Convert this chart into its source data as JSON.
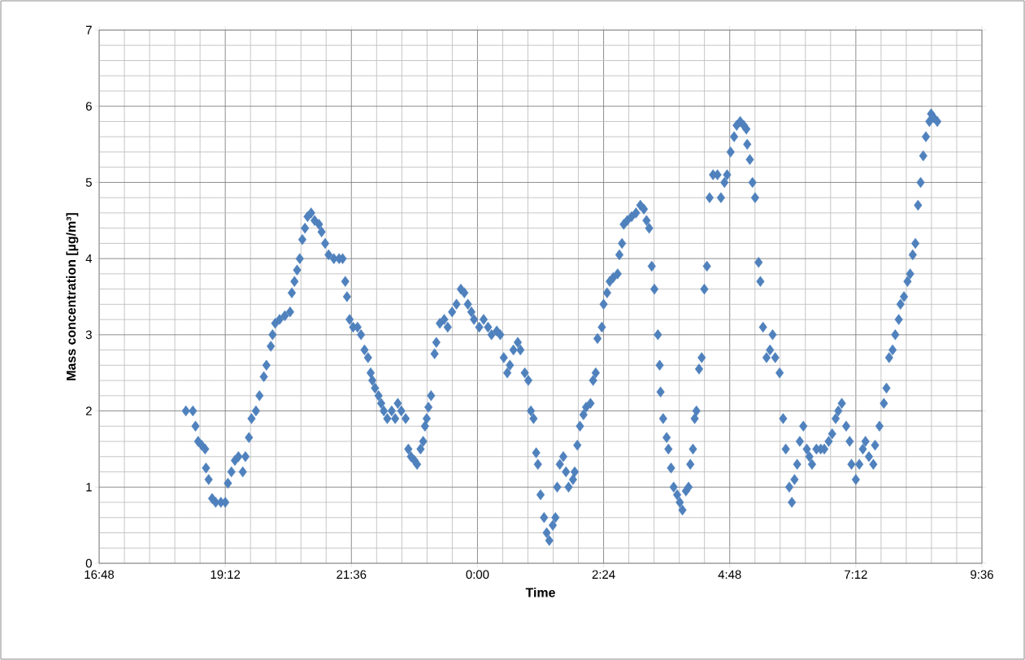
{
  "chart_data": {
    "type": "scatter",
    "xlabel": "Time",
    "ylabel": "Mass concentration [µg/m³]",
    "xlim": [
      "2000-01-01T16:48",
      "2000-01-02T09:36"
    ],
    "ylim": [
      0,
      7
    ],
    "xticks": [
      {
        "value": "2000-01-01T16:48",
        "label": "16:48"
      },
      {
        "value": "2000-01-01T19:12",
        "label": "19:12"
      },
      {
        "value": "2000-01-01T21:36",
        "label": "21:36"
      },
      {
        "value": "2000-01-02T00:00",
        "label": "0:00"
      },
      {
        "value": "2000-01-02T02:24",
        "label": "2:24"
      },
      {
        "value": "2000-01-02T04:48",
        "label": "4:48"
      },
      {
        "value": "2000-01-02T07:12",
        "label": "7:12"
      },
      {
        "value": "2000-01-02T09:36",
        "label": "9:36"
      }
    ],
    "yticks": [
      0,
      1,
      2,
      3,
      4,
      5,
      6,
      7
    ],
    "grid": true,
    "marker": "diamond",
    "x": [
      "2000-01-01T18:27",
      "2000-01-01T18:35",
      "2000-01-01T18:38",
      "2000-01-01T18:41",
      "2000-01-01T18:45",
      "2000-01-01T18:49",
      "2000-01-01T18:50",
      "2000-01-01T18:53",
      "2000-01-01T18:57",
      "2000-01-01T19:01",
      "2000-01-01T19:07",
      "2000-01-01T19:12",
      "2000-01-01T19:15",
      "2000-01-01T19:19",
      "2000-01-01T19:23",
      "2000-01-01T19:27",
      "2000-01-01T19:32",
      "2000-01-01T19:35",
      "2000-01-01T19:39",
      "2000-01-01T19:42",
      "2000-01-01T19:47",
      "2000-01-01T19:51",
      "2000-01-01T19:56",
      "2000-01-01T19:59",
      "2000-01-01T20:04",
      "2000-01-01T20:06",
      "2000-01-01T20:09",
      "2000-01-01T20:14",
      "2000-01-01T20:20",
      "2000-01-01T20:26",
      "2000-01-01T20:28",
      "2000-01-01T20:31",
      "2000-01-01T20:34",
      "2000-01-01T20:37",
      "2000-01-01T20:40",
      "2000-01-01T20:43",
      "2000-01-01T20:46",
      "2000-01-01T20:50",
      "2000-01-01T20:54",
      "2000-01-01T20:59",
      "2000-01-01T21:02",
      "2000-01-01T21:06",
      "2000-01-01T21:10",
      "2000-01-01T21:16",
      "2000-01-01T21:22",
      "2000-01-01T21:26",
      "2000-01-01T21:29",
      "2000-01-01T21:31",
      "2000-01-01T21:34",
      "2000-01-01T21:38",
      "2000-01-01T21:43",
      "2000-01-01T21:47",
      "2000-01-01T21:51",
      "2000-01-01T21:55",
      "2000-01-01T21:58",
      "2000-01-01T22:00",
      "2000-01-01T22:03",
      "2000-01-01T22:07",
      "2000-01-01T22:10",
      "2000-01-01T22:13",
      "2000-01-01T22:17",
      "2000-01-01T22:22",
      "2000-01-01T22:26",
      "2000-01-01T22:29",
      "2000-01-01T22:33",
      "2000-01-01T22:38",
      "2000-01-01T22:41",
      "2000-01-01T22:44",
      "2000-01-01T22:48",
      "2000-01-01T22:51",
      "2000-01-01T22:55",
      "2000-01-01T22:58",
      "2000-01-01T23:00",
      "2000-01-01T23:02",
      "2000-01-01T23:04",
      "2000-01-01T23:07",
      "2000-01-01T23:11",
      "2000-01-01T23:13",
      "2000-01-01T23:17",
      "2000-01-01T23:22",
      "2000-01-01T23:26",
      "2000-01-01T23:31",
      "2000-01-01T23:36",
      "2000-01-01T23:41",
      "2000-01-01T23:45",
      "2000-01-01T23:49",
      "2000-01-01T23:53",
      "2000-01-01T23:56",
      "2000-01-02T00:02",
      "2000-01-02T00:07",
      "2000-01-02T00:12",
      "2000-01-02T00:16",
      "2000-01-02T00:22",
      "2000-01-02T00:26",
      "2000-01-02T00:30",
      "2000-01-02T00:34",
      "2000-01-02T00:37",
      "2000-01-02T00:41",
      "2000-01-02T00:46",
      "2000-01-02T00:49",
      "2000-01-02T00:54",
      "2000-01-02T00:58",
      "2000-01-02T01:01",
      "2000-01-02T01:04",
      "2000-01-02T01:07",
      "2000-01-02T01:09",
      "2000-01-02T01:12",
      "2000-01-02T01:16",
      "2000-01-02T01:19",
      "2000-01-02T01:22",
      "2000-01-02T01:26",
      "2000-01-02T01:29",
      "2000-01-02T01:31",
      "2000-01-02T01:34",
      "2000-01-02T01:38",
      "2000-01-02T01:41",
      "2000-01-02T01:44",
      "2000-01-02T01:49",
      "2000-01-02T01:51",
      "2000-01-02T01:54",
      "2000-01-02T01:57",
      "2000-01-02T02:01",
      "2000-01-02T02:04",
      "2000-01-02T02:09",
      "2000-01-02T02:12",
      "2000-01-02T02:15",
      "2000-01-02T02:17",
      "2000-01-02T02:22",
      "2000-01-02T02:24",
      "2000-01-02T02:28",
      "2000-01-02T02:31",
      "2000-01-02T02:35",
      "2000-01-02T02:40",
      "2000-01-02T02:42",
      "2000-01-02T02:45",
      "2000-01-02T02:47",
      "2000-01-02T02:51",
      "2000-01-02T02:56",
      "2000-01-02T03:01",
      "2000-01-02T03:06",
      "2000-01-02T03:10",
      "2000-01-02T03:13",
      "2000-01-02T03:16",
      "2000-01-02T03:19",
      "2000-01-02T03:22",
      "2000-01-02T03:26",
      "2000-01-02T03:28",
      "2000-01-02T03:29",
      "2000-01-02T03:32",
      "2000-01-02T03:36",
      "2000-01-02T03:38",
      "2000-01-02T03:41",
      "2000-01-02T03:44",
      "2000-01-02T03:48",
      "2000-01-02T03:51",
      "2000-01-02T03:54",
      "2000-01-02T03:58",
      "2000-01-02T04:01",
      "2000-01-02T04:03",
      "2000-01-02T04:06",
      "2000-01-02T04:08",
      "2000-01-02T04:10",
      "2000-01-02T04:13",
      "2000-01-02T04:16",
      "2000-01-02T04:19",
      "2000-01-02T04:22",
      "2000-01-02T04:25",
      "2000-01-02T04:29",
      "2000-01-02T04:34",
      "2000-01-02T04:38",
      "2000-01-02T04:42",
      "2000-01-02T04:45",
      "2000-01-02T04:49",
      "2000-01-02T04:53",
      "2000-01-02T04:56",
      "2000-01-02T05:00",
      "2000-01-02T05:04",
      "2000-01-02T05:07",
      "2000-01-02T05:08",
      "2000-01-02T05:11",
      "2000-01-02T05:14",
      "2000-01-02T05:17",
      "2000-01-02T05:21",
      "2000-01-02T05:23",
      "2000-01-02T05:26",
      "2000-01-02T05:30",
      "2000-01-02T05:34",
      "2000-01-02T05:37",
      "2000-01-02T05:40",
      "2000-01-02T05:45",
      "2000-01-02T05:49",
      "2000-01-02T05:52",
      "2000-01-02T05:56",
      "2000-01-02T05:59",
      "2000-01-02T06:02",
      "2000-01-02T06:05",
      "2000-01-02T06:08",
      "2000-01-02T06:12",
      "2000-01-02T06:16",
      "2000-01-02T06:19",
      "2000-01-02T06:22",
      "2000-01-02T06:27",
      "2000-01-02T06:32",
      "2000-01-02T06:36",
      "2000-01-02T06:41",
      "2000-01-02T06:45",
      "2000-01-02T06:49",
      "2000-01-02T06:52",
      "2000-01-02T06:56",
      "2000-01-02T07:01",
      "2000-01-02T07:05",
      "2000-01-02T07:07",
      "2000-01-02T07:12",
      "2000-01-02T07:16",
      "2000-01-02T07:20",
      "2000-01-02T07:23",
      "2000-01-02T07:27",
      "2000-01-02T07:32",
      "2000-01-02T07:34",
      "2000-01-02T07:39",
      "2000-01-02T07:44",
      "2000-01-02T07:47",
      "2000-01-02T07:50",
      "2000-01-02T07:54",
      "2000-01-02T07:57",
      "2000-01-02T08:01",
      "2000-01-02T08:03",
      "2000-01-02T08:07",
      "2000-01-02T08:11",
      "2000-01-02T08:14",
      "2000-01-02T08:17",
      "2000-01-02T08:20",
      "2000-01-02T08:23",
      "2000-01-02T08:26",
      "2000-01-02T08:29",
      "2000-01-02T08:32",
      "2000-01-02T08:36",
      "2000-01-02T08:38",
      "2000-01-02T08:41",
      "2000-01-02T08:45"
    ],
    "series": [
      {
        "color": "#4f81bd",
        "values": [
          2.0,
          2.0,
          1.8,
          1.6,
          1.55,
          1.5,
          1.25,
          1.1,
          0.85,
          0.8,
          0.8,
          0.8,
          1.05,
          1.2,
          1.35,
          1.4,
          1.2,
          1.4,
          1.65,
          1.9,
          2.0,
          2.2,
          2.45,
          2.6,
          2.85,
          3.0,
          3.15,
          3.2,
          3.25,
          3.3,
          3.55,
          3.7,
          3.85,
          4.0,
          4.25,
          4.4,
          4.55,
          4.6,
          4.5,
          4.45,
          4.35,
          4.2,
          4.05,
          4.0,
          4.0,
          4.0,
          3.7,
          3.5,
          3.2,
          3.1,
          3.1,
          3.0,
          2.8,
          2.7,
          2.5,
          2.4,
          2.3,
          2.2,
          2.1,
          2.0,
          1.9,
          2.0,
          1.9,
          2.1,
          2.0,
          1.9,
          1.5,
          1.4,
          1.35,
          1.3,
          1.5,
          1.6,
          1.8,
          1.9,
          2.05,
          2.2,
          2.75,
          2.9,
          3.15,
          3.2,
          3.1,
          3.3,
          3.4,
          3.6,
          3.55,
          3.4,
          3.3,
          3.2,
          3.1,
          3.2,
          3.1,
          3.0,
          3.05,
          3.0,
          2.7,
          2.5,
          2.6,
          2.8,
          2.9,
          2.8,
          2.5,
          2.4,
          2.0,
          1.9,
          1.45,
          1.3,
          0.9,
          0.6,
          0.4,
          0.3,
          0.5,
          0.6,
          1.0,
          1.3,
          1.4,
          1.2,
          1.0,
          1.1,
          1.2,
          1.55,
          1.8,
          1.95,
          2.05,
          2.1,
          2.4,
          2.5,
          2.95,
          3.1,
          3.4,
          3.55,
          3.7,
          3.75,
          3.8,
          4.05,
          4.2,
          4.45,
          4.5,
          4.55,
          4.6,
          4.7,
          4.65,
          4.5,
          4.4,
          3.9,
          3.6,
          3.0,
          2.6,
          2.25,
          1.9,
          1.65,
          1.5,
          1.25,
          1.0,
          0.9,
          0.8,
          0.7,
          0.95,
          1.0,
          1.3,
          1.5,
          1.9,
          2.0,
          2.55,
          2.7,
          3.6,
          3.9,
          4.8,
          5.1,
          5.1,
          4.8,
          5.0,
          5.1,
          5.4,
          5.6,
          5.75,
          5.8,
          5.75,
          5.7,
          5.5,
          5.3,
          5.0,
          4.8,
          3.95,
          3.7,
          3.1,
          2.7,
          2.8,
          3.0,
          2.7,
          2.5,
          1.9,
          1.5,
          1.0,
          0.8,
          1.1,
          1.3,
          1.6,
          1.8,
          1.5,
          1.4,
          1.3,
          1.5,
          1.5,
          1.5,
          1.6,
          1.7,
          1.9,
          2.0,
          2.1,
          1.8,
          1.6,
          1.3,
          1.1,
          1.3,
          1.5,
          1.6,
          1.4,
          1.3,
          1.55,
          1.8,
          2.1,
          2.3,
          2.7,
          2.8,
          3.0,
          3.2,
          3.4,
          3.5,
          3.7,
          3.8,
          4.05,
          4.2,
          4.7,
          5.0,
          5.35,
          5.6,
          5.8,
          5.9,
          5.85,
          5.8
        ]
      }
    ]
  }
}
